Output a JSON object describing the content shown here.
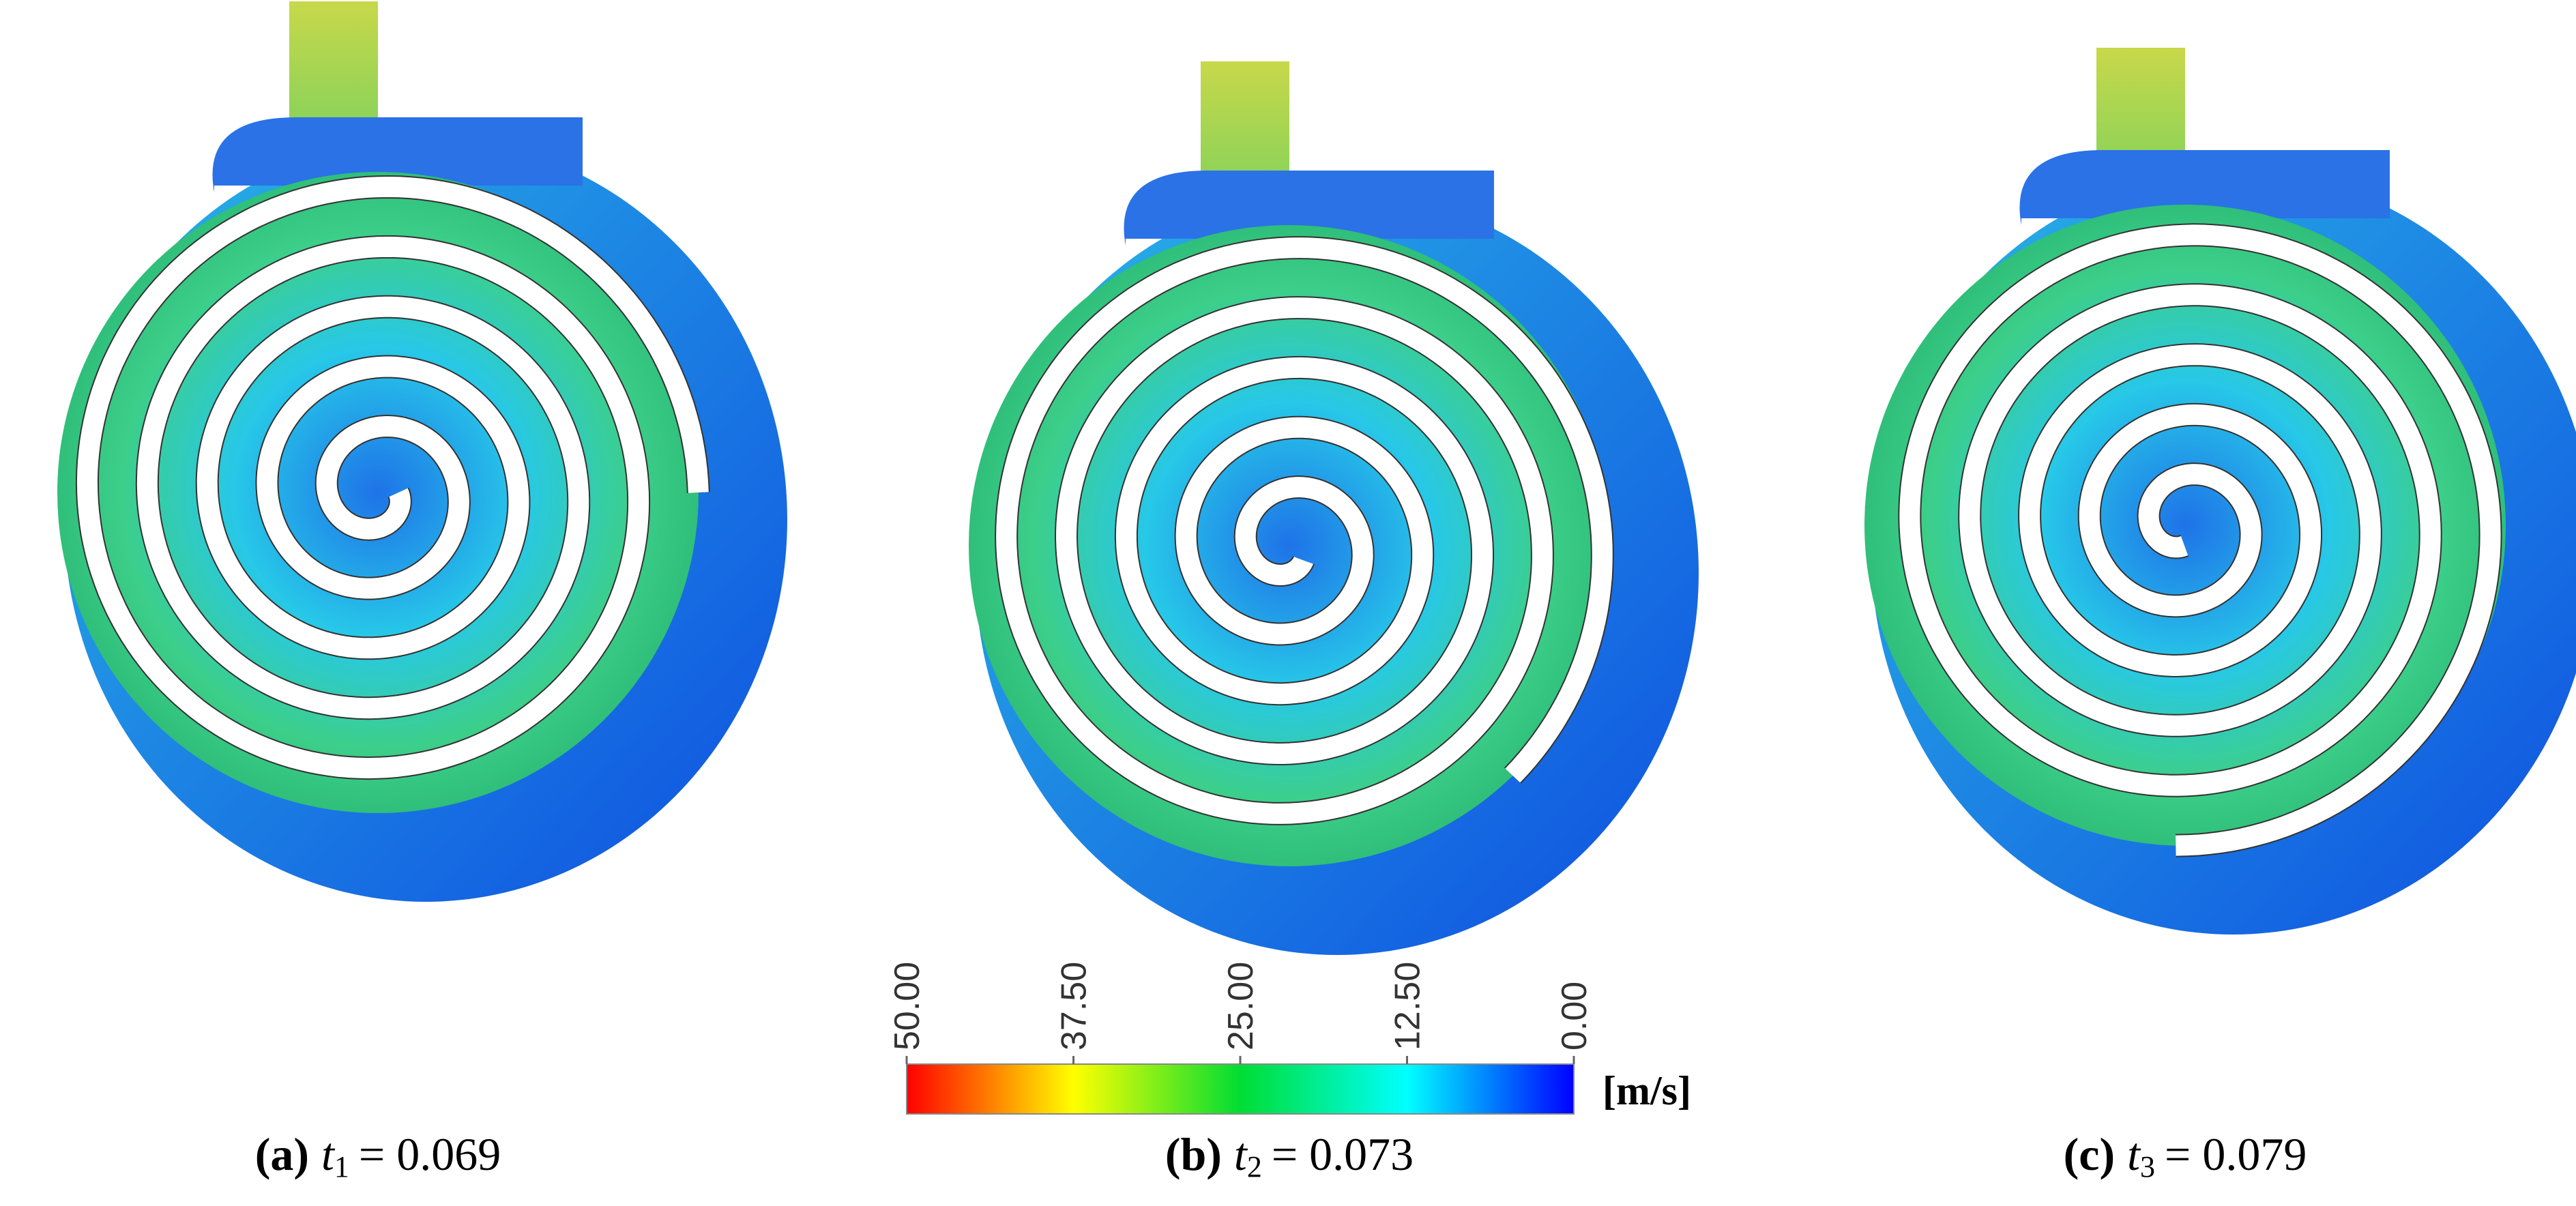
{
  "panels": [
    {
      "letter": "(a)",
      "symbol": "t",
      "subscript": "1",
      "value": "= 0.069"
    },
    {
      "letter": "(b)",
      "symbol": "t",
      "subscript": "2",
      "value": "= 0.073"
    },
    {
      "letter": "(c)",
      "symbol": "t",
      "subscript": "3",
      "value": "= 0.079"
    }
  ],
  "colorbar": {
    "unit": "[m/s]",
    "lim": [
      50,
      0
    ],
    "ticks": [
      {
        "value": 50,
        "label": "50.00"
      },
      {
        "value": 37.5,
        "label": "37.50"
      },
      {
        "value": 25,
        "label": "25.00"
      },
      {
        "value": 12.5,
        "label": "12.50"
      },
      {
        "value": 0,
        "label": "0.00"
      }
    ],
    "colors": [
      "#ff0000",
      "#ffff00",
      "#00dd33",
      "#00ffff",
      "#0000ff"
    ]
  }
}
